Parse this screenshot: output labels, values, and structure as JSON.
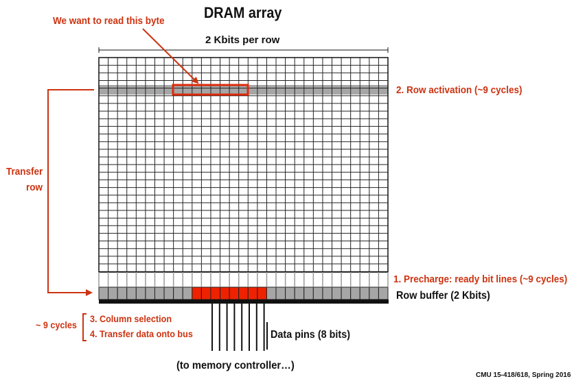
{
  "title": "DRAM array",
  "top_label": "2 Kbits per row",
  "target_byte_label": "We want to read this byte",
  "transfer_label_line1": "Transfer",
  "transfer_label_line2": "row",
  "row_activation_label": "2. Row activation (~9 cycles)",
  "precharge_label": "1. Precharge: ready bit lines (~9 cycles)",
  "row_buffer_label": "Row buffer (2 Kbits)",
  "cycles_label": "~ 9 cycles",
  "step3_label": "3. Column selection",
  "step4_label": "4. Transfer data onto bus",
  "data_pins_label": "Data pins (8 bits)",
  "to_controller_label": "(to memory controller…)",
  "footer_label": "CMU 15-418/618, Spring 2016",
  "colors": {
    "accent_red": "#cc3311",
    "highlight_red": "#ee2200",
    "active_row_gray": "#a6a6a6",
    "grid_line": "#222222"
  }
}
